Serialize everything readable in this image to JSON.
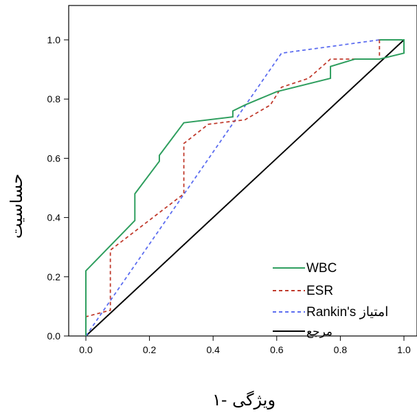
{
  "chart_data": {
    "type": "line",
    "xlabel": "ویژگی -۱",
    "ylabel": "حساسیت",
    "xlim": [
      0.0,
      1.0
    ],
    "ylim": [
      0.0,
      1.0
    ],
    "x_ticks": [
      "0.0",
      "0.2",
      "0.4",
      "0.6",
      "0.8",
      "1.0"
    ],
    "y_ticks": [
      "0.0",
      "0.2",
      "0.4",
      "0.6",
      "0.8",
      "1.0"
    ],
    "grid": false,
    "legend_position": "bottom-right",
    "series": [
      {
        "name": "WBC",
        "color": "#2e9e5e",
        "dash": "solid",
        "points": [
          [
            0.0,
            0.0
          ],
          [
            0.0,
            0.22
          ],
          [
            0.154,
            0.39
          ],
          [
            0.154,
            0.48
          ],
          [
            0.231,
            0.59
          ],
          [
            0.231,
            0.61
          ],
          [
            0.308,
            0.72
          ],
          [
            0.462,
            0.74
          ],
          [
            0.462,
            0.76
          ],
          [
            0.5,
            0.78
          ],
          [
            0.6,
            0.825
          ],
          [
            0.769,
            0.87
          ],
          [
            0.769,
            0.91
          ],
          [
            0.846,
            0.935
          ],
          [
            0.923,
            0.935
          ],
          [
            1.0,
            0.955
          ],
          [
            1.0,
            1.0
          ],
          [
            0.923,
            1.0
          ]
        ]
      },
      {
        "name": "ESR",
        "color": "#c0392b",
        "dash": "dashed",
        "points": [
          [
            0.0,
            0.0
          ],
          [
            0.0,
            0.065
          ],
          [
            0.077,
            0.087
          ],
          [
            0.077,
            0.29
          ],
          [
            0.308,
            0.48
          ],
          [
            0.308,
            0.65
          ],
          [
            0.385,
            0.715
          ],
          [
            0.5,
            0.73
          ],
          [
            0.58,
            0.78
          ],
          [
            0.615,
            0.84
          ],
          [
            0.7,
            0.87
          ],
          [
            0.769,
            0.935
          ],
          [
            0.923,
            0.935
          ],
          [
            0.923,
            1.0
          ],
          [
            1.0,
            1.0
          ]
        ]
      },
      {
        "name": "Rankin's امتیاز",
        "color": "#5b6cf0",
        "dash": "dashed",
        "points": [
          [
            0.0,
            0.0
          ],
          [
            0.615,
            0.955
          ],
          [
            0.923,
            1.0
          ],
          [
            1.0,
            1.0
          ]
        ]
      },
      {
        "name": "مرجع",
        "color": "#000000",
        "dash": "solid",
        "points": [
          [
            0.0,
            0.0
          ],
          [
            1.0,
            1.0
          ]
        ]
      }
    ]
  }
}
